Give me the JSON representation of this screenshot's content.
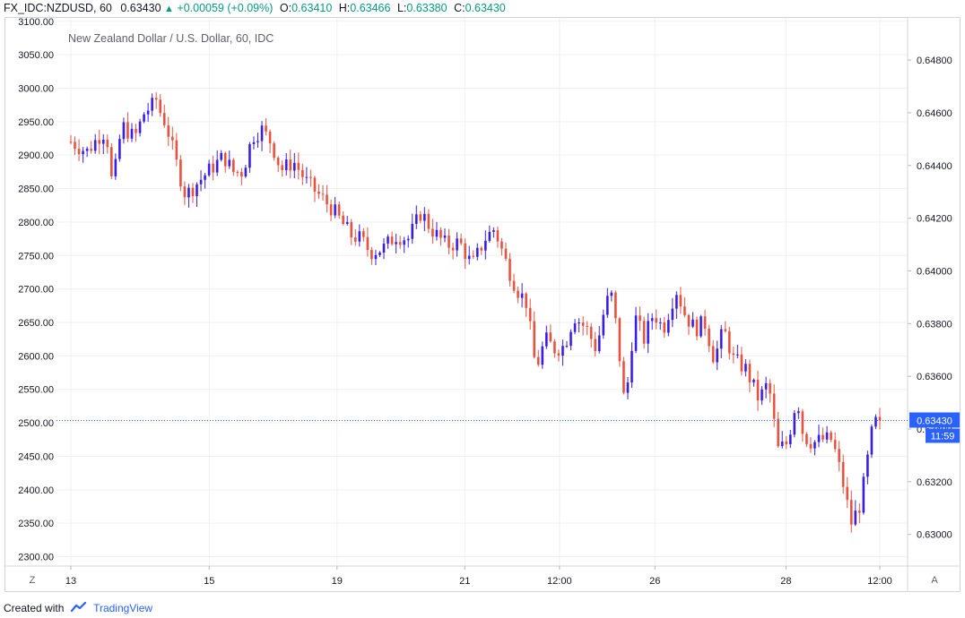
{
  "header": {
    "symbol": "FX_IDC:NZDUSD, 60",
    "last": "0.63430",
    "change": "+0.00059 (+0.09%)",
    "open_label": "O:",
    "open": "0.63410",
    "high_label": "H:",
    "high": "0.63466",
    "low_label": "L:",
    "low": "0.63380",
    "close_label": "C:",
    "close": "0.63430"
  },
  "footer": {
    "created_with": "Created with",
    "brand": "TradingView"
  },
  "corner_buttons": {
    "left": "Z",
    "right": "A"
  },
  "colors": {
    "up": "#3b1ee6",
    "down": "#e8533f",
    "grid": "#eef0f3",
    "last_line": "#2962ff",
    "header_green": "#089981"
  },
  "chart_data": {
    "type": "candlestick",
    "title": "New Zealand Dollar / U.S. Dollar, 60, IDC",
    "left_axis": {
      "ticks": [
        "3100.00",
        "3050.00",
        "3000.00",
        "2950.00",
        "2900.00",
        "2850.00",
        "2800.00",
        "2750.00",
        "2700.00",
        "2650.00",
        "2600.00",
        "2550.00",
        "2500.00",
        "2450.00",
        "2400.00",
        "2350.00",
        "2300.00"
      ],
      "range": [
        2286,
        3105
      ]
    },
    "right_axis": {
      "ticks": [
        "0.64800",
        "0.64600",
        "0.64400",
        "0.64200",
        "0.64000",
        "0.63800",
        "0.63600",
        "0.63400",
        "0.63200",
        "0.63000"
      ],
      "range": [
        0.6288,
        0.6496
      ]
    },
    "x_axis": {
      "ticks": [
        {
          "label": "13",
          "pos": 0.0
        },
        {
          "label": "15",
          "pos": 0.171
        },
        {
          "label": "19",
          "pos": 0.329
        },
        {
          "label": "21",
          "pos": 0.487
        },
        {
          "label": "12:00",
          "pos": 0.604
        },
        {
          "label": "26",
          "pos": 0.722
        },
        {
          "label": "28",
          "pos": 0.884
        },
        {
          "label": "12:00",
          "pos": 1.0
        }
      ]
    },
    "last_price": {
      "value": "0.63430",
      "countdown": "11:59",
      "level": 2503.5
    },
    "legend": "none",
    "grid": true,
    "candle_count": 200,
    "path_anchors": [
      [
        0,
        2920
      ],
      [
        5,
        2905
      ],
      [
        10,
        2935
      ],
      [
        12,
        2915
      ],
      [
        13,
        2848
      ],
      [
        16,
        2945
      ],
      [
        20,
        2925
      ],
      [
        24,
        2975
      ],
      [
        25,
        2950
      ],
      [
        26,
        2995
      ],
      [
        28,
        2965
      ],
      [
        30,
        2945
      ],
      [
        33,
        2890
      ],
      [
        36,
        2840
      ],
      [
        40,
        2860
      ],
      [
        44,
        2880
      ],
      [
        48,
        2898
      ],
      [
        51,
        2875
      ],
      [
        54,
        2875
      ],
      [
        57,
        2928
      ],
      [
        60,
        2938
      ],
      [
        63,
        2918
      ],
      [
        66,
        2878
      ],
      [
        70,
        2890
      ],
      [
        74,
        2860
      ],
      [
        78,
        2840
      ],
      [
        82,
        2820
      ],
      [
        85,
        2800
      ],
      [
        88,
        2780
      ],
      [
        91,
        2775
      ],
      [
        94,
        2755
      ],
      [
        98,
        2760
      ],
      [
        102,
        2780
      ],
      [
        106,
        2775
      ],
      [
        110,
        2815
      ],
      [
        113,
        2790
      ],
      [
        118,
        2765
      ],
      [
        122,
        2770
      ],
      [
        126,
        2735
      ],
      [
        130,
        2775
      ],
      [
        133,
        2790
      ],
      [
        137,
        2735
      ],
      [
        140,
        2700
      ],
      [
        143,
        2680
      ],
      [
        146,
        2580
      ],
      [
        149,
        2625
      ],
      [
        152,
        2610
      ],
      [
        155,
        2615
      ],
      [
        158,
        2660
      ],
      [
        162,
        2640
      ],
      [
        165,
        2610
      ],
      [
        168,
        2680
      ],
      [
        170,
        2690
      ],
      [
        172,
        2612
      ],
      [
        174,
        2520
      ],
      [
        177,
        2660
      ],
      [
        180,
        2625
      ],
      [
        183,
        2665
      ],
      [
        186,
        2640
      ],
      [
        190,
        2700
      ],
      [
        193,
        2660
      ],
      [
        196,
        2640
      ],
      [
        199,
        2650
      ],
      [
        202,
        2595
      ],
      [
        205,
        2640
      ],
      [
        208,
        2595
      ],
      [
        212,
        2580
      ],
      [
        216,
        2535
      ],
      [
        219,
        2560
      ],
      [
        222,
        2460
      ],
      [
        225,
        2470
      ],
      [
        228,
        2540
      ],
      [
        230,
        2480
      ],
      [
        233,
        2470
      ],
      [
        236,
        2475
      ],
      [
        239,
        2475
      ],
      [
        242,
        2420
      ],
      [
        245,
        2350
      ],
      [
        248,
        2380
      ],
      [
        250,
        2440
      ],
      [
        252,
        2500
      ],
      [
        254,
        2503
      ]
    ]
  }
}
